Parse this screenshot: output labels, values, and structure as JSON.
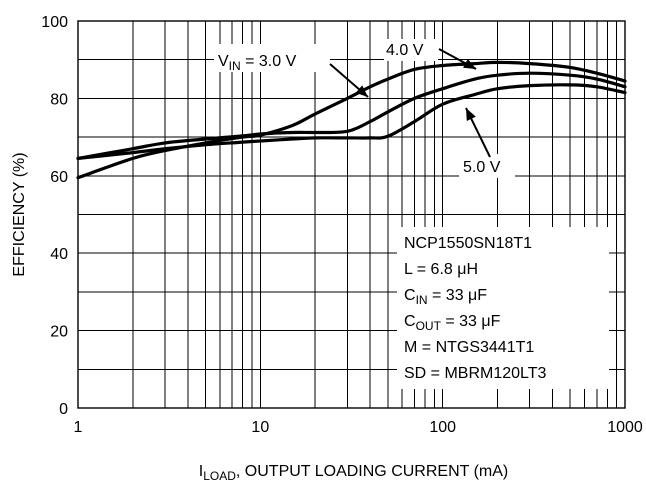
{
  "chart_data": {
    "type": "line",
    "title": "",
    "xlabel": {
      "base": "I",
      "sub": "LOAD",
      "rest": ", OUTPUT LOADING CURRENT (mA)"
    },
    "ylabel": "EFFICIENCY (%)",
    "xscale": "log",
    "xlim": [
      1,
      1000
    ],
    "ylim": [
      0,
      100
    ],
    "grid": true,
    "x_ticks": [
      1,
      10,
      100,
      1000
    ],
    "x_tick_labels": [
      "1",
      "10",
      "100",
      "1000"
    ],
    "y_ticks": [
      0,
      20,
      40,
      60,
      80,
      100
    ],
    "y_tick_labels": [
      "0",
      "20",
      "40",
      "60",
      "80",
      "100"
    ],
    "series": [
      {
        "name": "VIN = 3.0 V",
        "x": [
          1,
          2,
          3,
          5,
          8,
          10,
          15,
          20,
          30,
          40,
          50,
          70,
          100,
          150,
          200,
          300,
          500,
          700,
          1000
        ],
        "y": [
          59.5,
          64.5,
          66.5,
          68.5,
          70,
          70.5,
          73,
          76,
          80,
          83,
          85,
          87.5,
          88.5,
          89,
          89.3,
          89,
          88,
          86.5,
          84.5
        ]
      },
      {
        "name": "4.0 V",
        "x": [
          1,
          2,
          3,
          5,
          8,
          10,
          15,
          20,
          30,
          40,
          50,
          70,
          100,
          150,
          200,
          300,
          500,
          700,
          1000
        ],
        "y": [
          64.5,
          67,
          68.5,
          69.5,
          70.3,
          70.8,
          71.2,
          71.2,
          71.5,
          74,
          76.5,
          80,
          82.5,
          85,
          86,
          86.5,
          86,
          85,
          83
        ]
      },
      {
        "name": "5.0 V",
        "x": [
          1,
          2,
          3,
          5,
          8,
          10,
          15,
          20,
          30,
          40,
          50,
          70,
          100,
          150,
          200,
          300,
          500,
          700,
          1000
        ],
        "y": [
          64.5,
          66,
          67,
          68,
          68.7,
          69,
          69.5,
          69.8,
          69.8,
          69.8,
          70.2,
          74,
          78.5,
          81,
          82.5,
          83.3,
          83.5,
          83,
          81.5
        ]
      }
    ],
    "annotations": {
      "vin": {
        "base": "V",
        "sub": "IN",
        "rest": " = 3.0 V"
      },
      "v4": "4.0 V",
      "v5": "5.0 V",
      "box": [
        {
          "base": "NCP1550SN18T1",
          "sub": "",
          "rest": ""
        },
        {
          "base": "L = 6.8 μH",
          "sub": "",
          "rest": ""
        },
        {
          "base": "C",
          "sub": "IN",
          "rest": " = 33 μF"
        },
        {
          "base": "C",
          "sub": "OUT",
          "rest": " = 33 μF"
        },
        {
          "base": "M = NTGS3441T1",
          "sub": "",
          "rest": ""
        },
        {
          "base": "SD = MBRM120LT3",
          "sub": "",
          "rest": ""
        }
      ]
    }
  }
}
